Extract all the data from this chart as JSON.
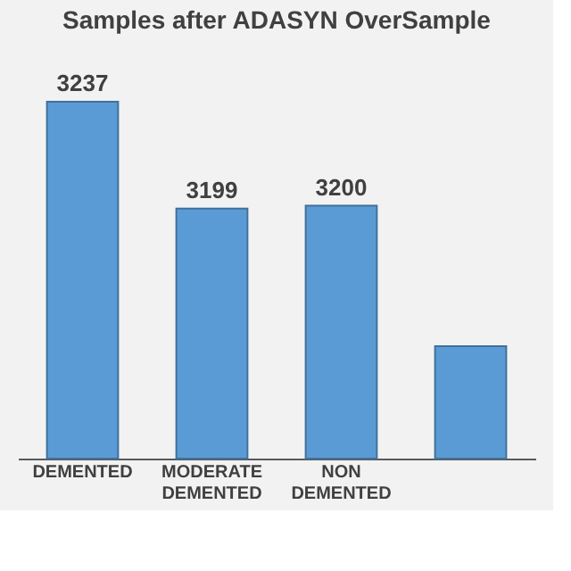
{
  "chart_data": {
    "type": "bar",
    "title": "Samples after ADASYN OverSample",
    "categories": [
      "DEMENTED",
      "MODERATE DEMENTED",
      "NON DEMENTED",
      null
    ],
    "values": [
      3237,
      3199,
      3200,
      3150
    ],
    "value_labels": [
      "3237",
      "3199",
      "3200",
      null
    ],
    "color": "#5b9bd5",
    "ylim": [
      3110,
      3237
    ],
    "tick_labels": "x"
  }
}
